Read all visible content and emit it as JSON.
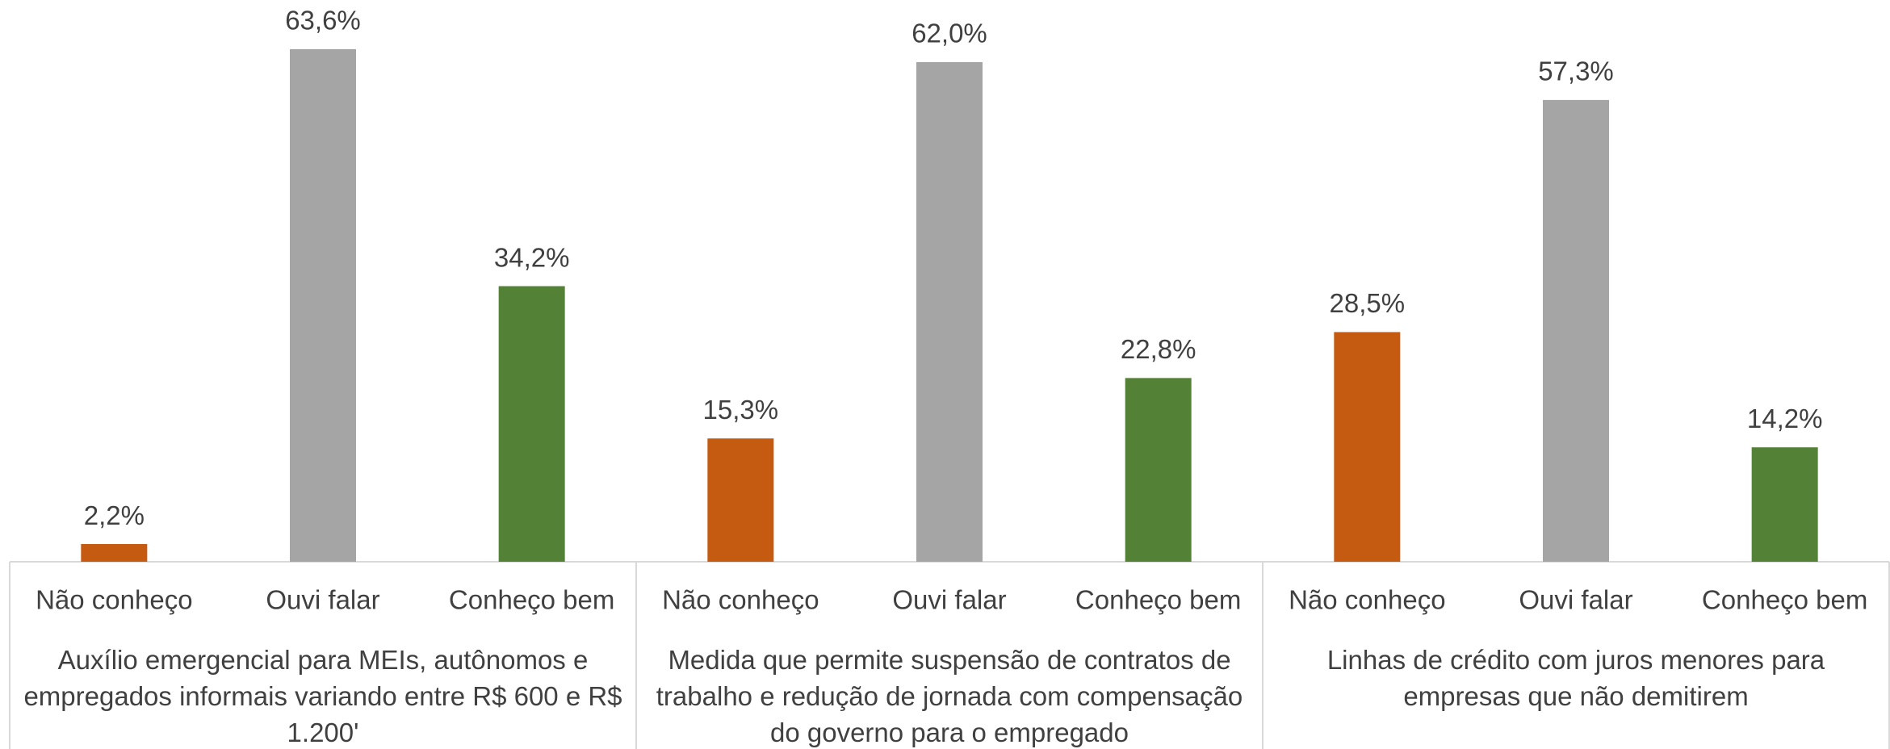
{
  "chart_data": {
    "type": "bar",
    "colors": [
      "#c55a11",
      "#a5a5a5",
      "#538135"
    ],
    "groups": [
      {
        "label": "Auxílio emergencial para MEIs, autônomos e empregados informais variando entre R$ 600 e R$ 1.200'",
        "categories": [
          "Não conheço",
          "Ouvi falar",
          "Conheço bem"
        ],
        "values": [
          2.2,
          63.6,
          34.2
        ],
        "value_labels": [
          "2,2%",
          "63,6%",
          "34,2%"
        ]
      },
      {
        "label": "Medida que permite suspensão de contratos de trabalho e redução de jornada com compensação do governo para o empregado",
        "categories": [
          "Não conheço",
          "Ouvi falar",
          "Conheço bem"
        ],
        "values": [
          15.3,
          62.0,
          22.8
        ],
        "value_labels": [
          "15,3%",
          "62,0%",
          "22,8%"
        ]
      },
      {
        "label": "Linhas de crédito com juros menores para empresas que não demitirem",
        "categories": [
          "Não conheço",
          "Ouvi falar",
          "Conheço bem"
        ],
        "values": [
          28.5,
          57.3,
          14.2
        ],
        "value_labels": [
          "28,5%",
          "57,3%",
          "14,2%"
        ]
      }
    ]
  }
}
